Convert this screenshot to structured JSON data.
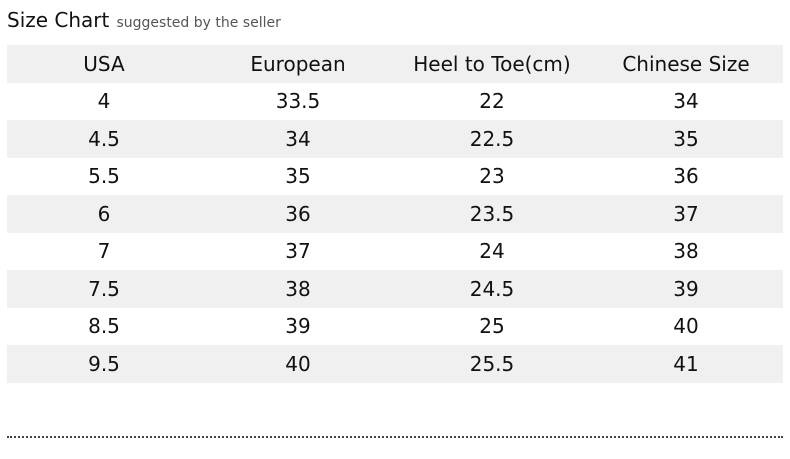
{
  "title": {
    "main": "Size Chart",
    "subtitle": "suggested by the seller"
  },
  "table": {
    "headers": [
      "USA",
      "European",
      "Heel to Toe(cm)",
      "Chinese Size"
    ],
    "rows": [
      [
        "4",
        "33.5",
        "22",
        "34"
      ],
      [
        "4.5",
        "34",
        "22.5",
        "35"
      ],
      [
        "5.5",
        "35",
        "23",
        "36"
      ],
      [
        "6",
        "36",
        "23.5",
        "37"
      ],
      [
        "7",
        "37",
        "24",
        "38"
      ],
      [
        "7.5",
        "38",
        "24.5",
        "39"
      ],
      [
        "8.5",
        "39",
        "25",
        "40"
      ],
      [
        "9.5",
        "40",
        "25.5",
        "41"
      ]
    ]
  },
  "colors": {
    "row_shade": "#f0f0f0"
  }
}
